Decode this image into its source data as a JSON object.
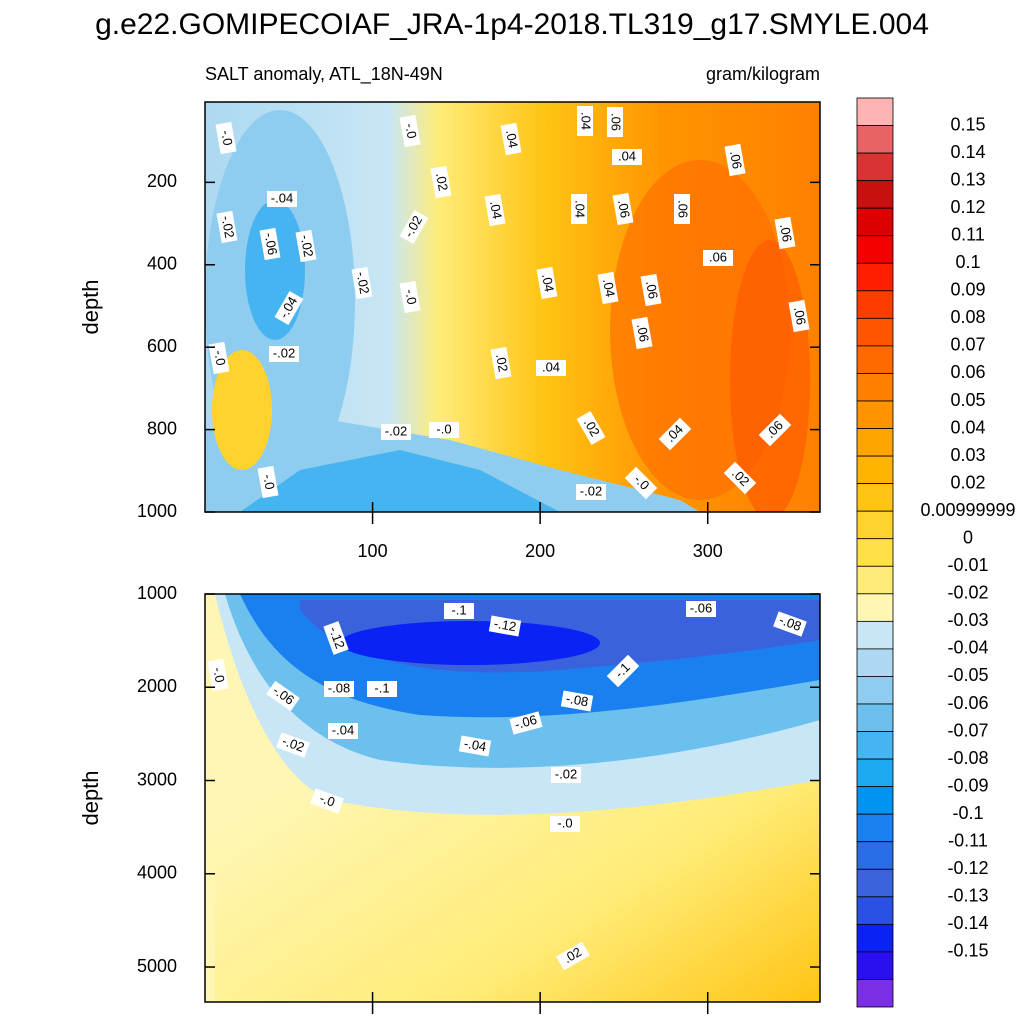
{
  "chart_data": [
    {
      "type": "contour",
      "title": "g.e22.GOMIPECOIAF_JRA-1p4-2018.TL319_g17.SMYLE.004",
      "subtitle_left": "SALT anomaly, ATL_18N-49N",
      "subtitle_right": "gram/kilogram",
      "ylabel": "depth",
      "xlim": [
        0,
        367
      ],
      "xticks": [
        100,
        200,
        300
      ],
      "ylim": [
        5,
        1000
      ],
      "yticks": [
        200,
        400,
        600,
        800,
        1000
      ],
      "contour_labels": [
        "-.0",
        "-.0",
        ".04",
        ".04",
        ".06",
        ".04",
        ".06",
        "-.04",
        ".02",
        "-.02",
        ".04",
        ".04",
        ".06",
        ".06",
        "-.06",
        "-.02",
        "-.02",
        ".06",
        "-.02",
        ".06",
        ".04",
        ".04",
        ".06",
        "-.0",
        "-.04",
        ".06",
        ".06",
        "-.02",
        "-.0",
        ".02",
        ".04",
        "-.02",
        "-.0",
        ".02",
        ".04",
        ".06",
        "-.0",
        ".02",
        "-.0",
        "-.02"
      ],
      "colorbar": {
        "levels": [
          0.15,
          0.14,
          0.13,
          0.12,
          0.11,
          0.1,
          0.09,
          0.08,
          0.07,
          0.06,
          0.05,
          0.04,
          0.03,
          0.02,
          0.00999999,
          0,
          -0.01,
          -0.02,
          -0.03,
          -0.04,
          -0.05,
          -0.06,
          -0.07,
          -0.08,
          -0.09,
          -0.1,
          -0.11,
          -0.12,
          -0.13,
          -0.14,
          -0.15
        ],
        "colors": [
          "#ffb4b4",
          "#e86464",
          "#d83232",
          "#c81010",
          "#dc0000",
          "#f40000",
          "#ff1e00",
          "#ff3c00",
          "#ff5500",
          "#ff6a00",
          "#ff8000",
          "#ff9400",
          "#ffa500",
          "#ffb400",
          "#ffc414",
          "#ffd22e",
          "#ffe048",
          "#ffec78",
          "#fff6b4",
          "#c8e6f5",
          "#acd9f1",
          "#8ecdef",
          "#6cc0ee",
          "#46b4f0",
          "#1ea8f0",
          "#0094f0",
          "#1a80f0",
          "#2a6ee6",
          "#3a62dc",
          "#2a50e4",
          "#0a22f4",
          "#2a10ee",
          "#7c2ee4"
        ]
      }
    },
    {
      "type": "contour",
      "ylabel": "depth",
      "xlim": [
        0,
        367
      ],
      "xticks": [
        100,
        200,
        300
      ],
      "ylim": [
        1000,
        5375
      ],
      "yticks": [
        1000,
        2000,
        3000,
        4000,
        5000
      ],
      "contour_labels": [
        "-.1",
        "-.06",
        "-.12",
        "-.08",
        "-.12",
        "-.0",
        "-.1",
        "-.08",
        "-.1",
        "-.06",
        "-.08",
        "-.04",
        "-.06",
        "-.02",
        "-.04",
        "-.02",
        "-.0",
        "-.0",
        ".02"
      ]
    }
  ]
}
